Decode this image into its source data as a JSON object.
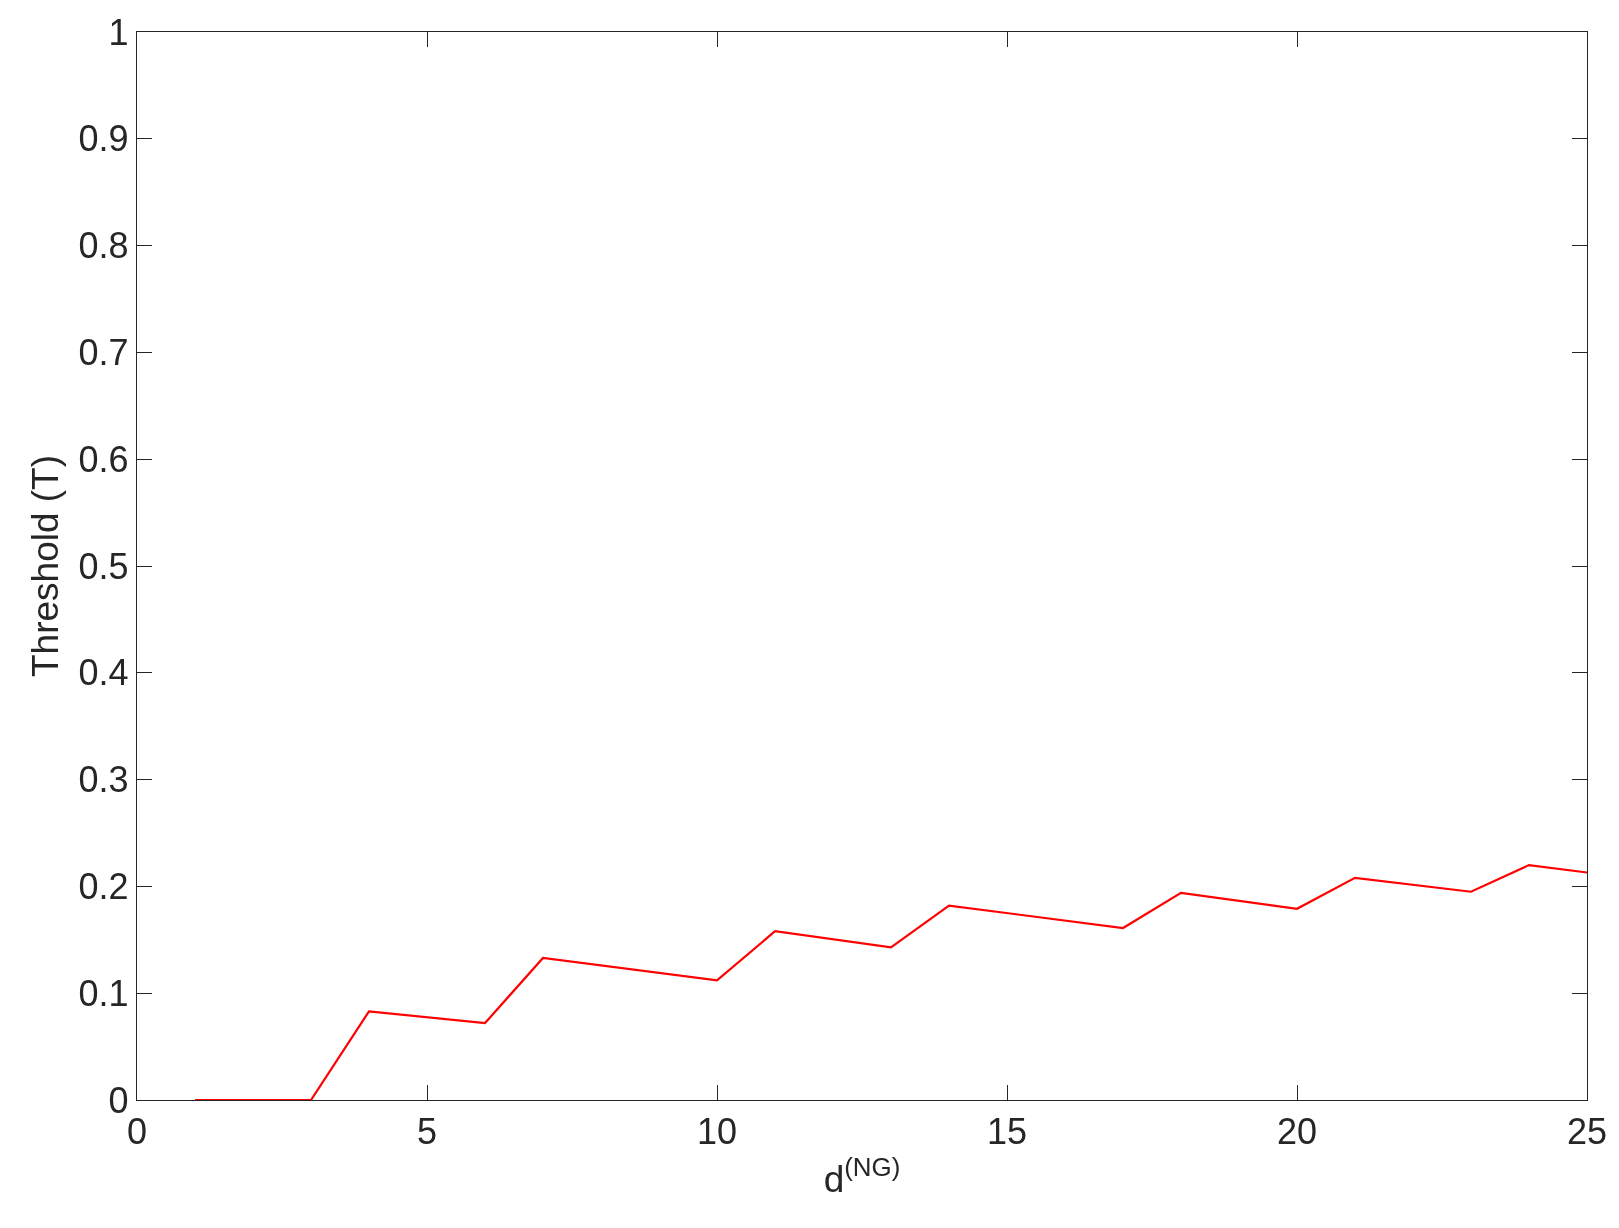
{
  "chart_data": {
    "type": "line",
    "xlabel": "d$^{(NG)}$",
    "ylabel": "Threshold (T)",
    "x": [
      1,
      3,
      4,
      6,
      7,
      10,
      11,
      13,
      14,
      17,
      18,
      20,
      21,
      23,
      24,
      25
    ],
    "values": [
      0,
      0,
      0.083,
      0.072,
      0.133,
      0.112,
      0.158,
      0.143,
      0.182,
      0.161,
      0.194,
      0.179,
      0.208,
      0.195,
      0.22,
      0.213
    ],
    "color": "#ff0000",
    "xlim": [
      0,
      25
    ],
    "xticks": [
      0,
      5,
      10,
      15,
      20,
      25
    ],
    "ylim": [
      0,
      1
    ],
    "yticks": [
      0,
      0.1,
      0.2,
      0.3,
      0.4,
      0.5,
      0.6,
      0.7,
      0.8,
      0.9,
      1
    ],
    "grid": false
  }
}
